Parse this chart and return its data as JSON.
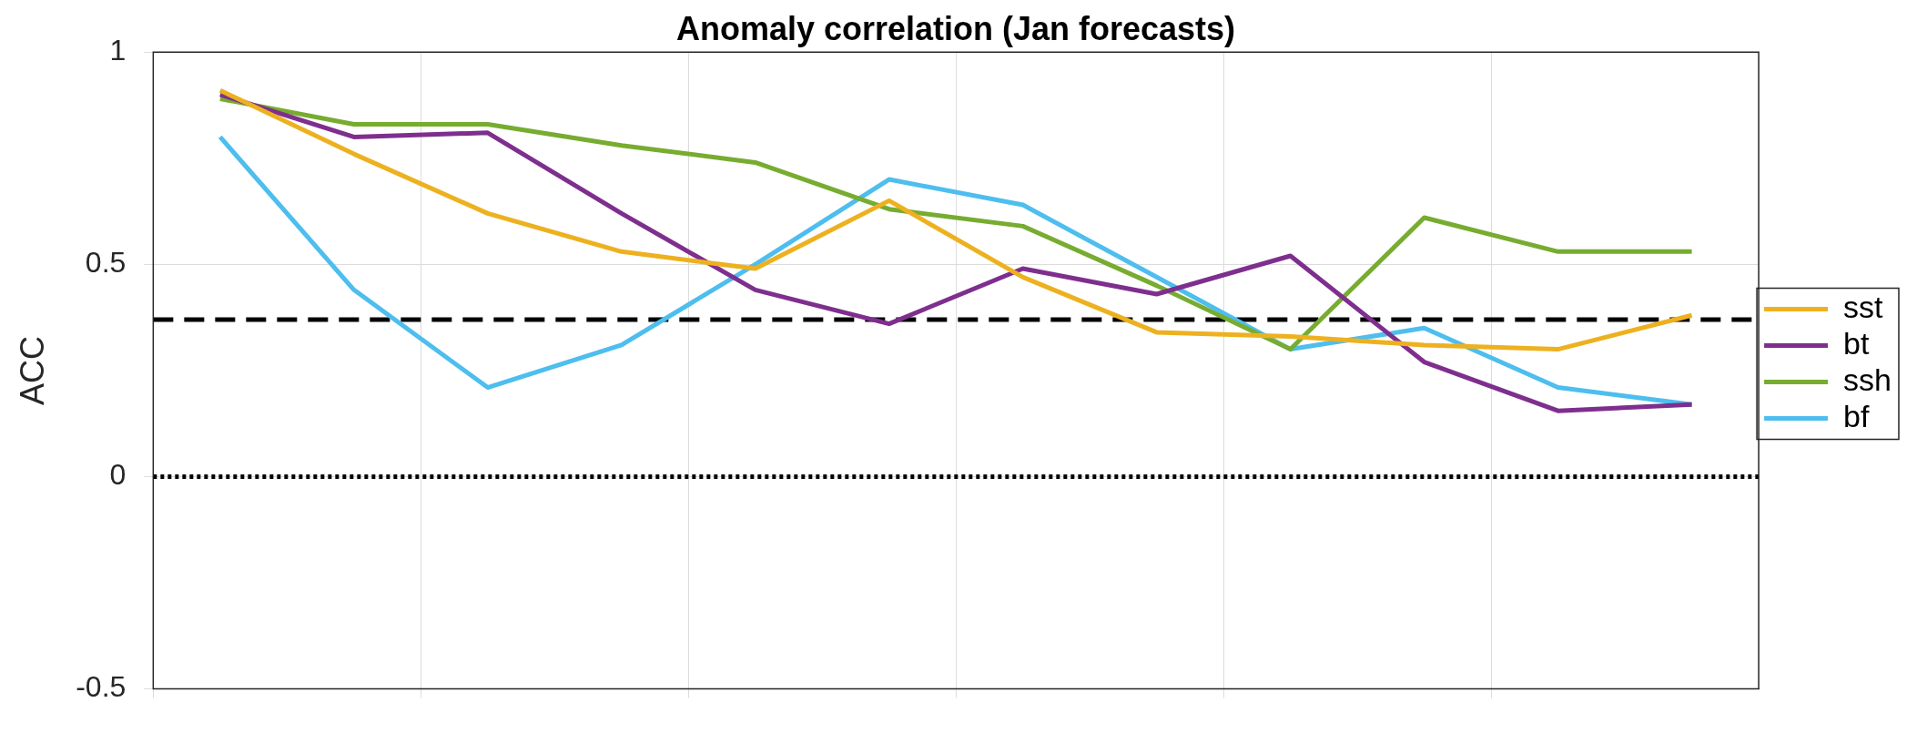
{
  "chart_data": {
    "type": "line",
    "title": "Anomaly correlation (Jan forecasts)",
    "ylabel": "ACC",
    "categories": [
      null,
      null,
      null,
      null,
      null,
      null,
      null,
      null,
      null,
      null,
      null,
      null
    ],
    "series": [
      {
        "name": "sst",
        "color": "#edb120",
        "values": [
          0.91,
          0.76,
          0.62,
          0.53,
          0.49,
          0.65,
          0.47,
          0.34,
          0.33,
          0.31,
          0.3,
          0.38
        ]
      },
      {
        "name": "bt",
        "color": "#7e2f8e",
        "values": [
          0.9,
          0.8,
          0.81,
          0.62,
          0.44,
          0.36,
          0.49,
          0.43,
          0.52,
          0.27,
          0.155,
          0.17
        ]
      },
      {
        "name": "ssh",
        "color": "#77ac30",
        "values": [
          0.89,
          0.83,
          0.83,
          0.78,
          0.74,
          0.63,
          0.59,
          0.45,
          0.3,
          0.61,
          0.53,
          0.53
        ]
      },
      {
        "name": "bf",
        "color": "#4dbeee",
        "values": [
          0.8,
          0.44,
          0.21,
          0.31,
          0.5,
          0.7,
          0.64,
          0.47,
          0.3,
          0.35,
          0.21,
          0.17
        ]
      }
    ],
    "ylim": [
      -0.5,
      1
    ],
    "yticks": [
      -0.5,
      0,
      0.5,
      1
    ],
    "ref_lines": [
      {
        "axis": "y",
        "value": 0.37,
        "line_style": "dashed",
        "color": "#000000"
      },
      {
        "axis": "y",
        "value": 0,
        "line_style": "dotted",
        "color": "#000000"
      }
    ],
    "grid": true,
    "legend": "right",
    "marker": "none",
    "line_style": "solid"
  }
}
